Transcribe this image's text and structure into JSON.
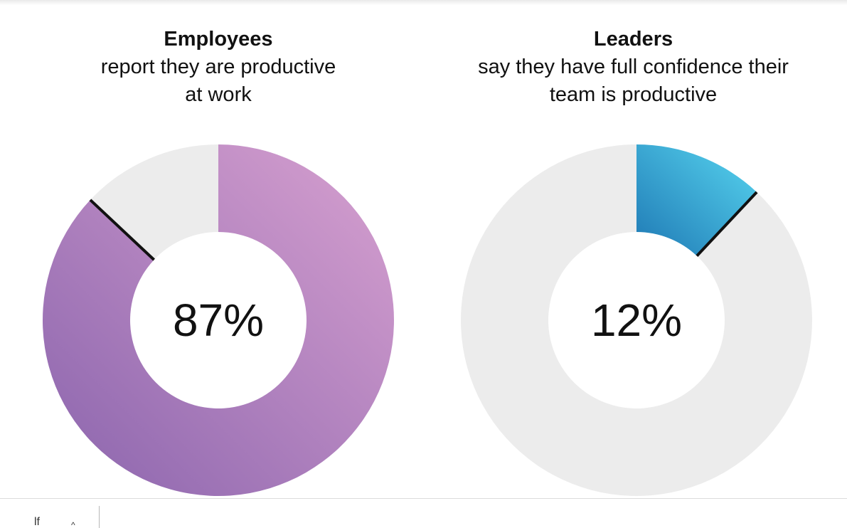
{
  "chart_data": [
    {
      "type": "pie",
      "title": "Employees",
      "subtitle_lines": [
        "report they are productive",
        "at work"
      ],
      "center_label": "87%",
      "value": 87,
      "remainder": 13,
      "colors": {
        "value_start": "#d8a1d0",
        "value_end": "#8a64ad",
        "remainder": "#ececec",
        "divider": "#111111"
      }
    },
    {
      "type": "pie",
      "title": "Leaders",
      "subtitle_lines": [
        "say they have full confidence their",
        "team is productive"
      ],
      "center_label": "12%",
      "value": 12,
      "remainder": 88,
      "colors": {
        "value_start": "#58d6f0",
        "value_end": "#1e78b4",
        "remainder": "#ececec",
        "divider": "#111111"
      }
    }
  ],
  "footer": {
    "glyph_1": "lf",
    "glyph_2": "^"
  }
}
